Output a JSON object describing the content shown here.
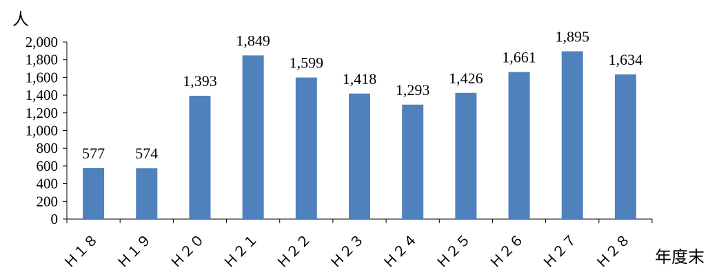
{
  "chart_data": {
    "type": "bar",
    "categories": [
      "Ｈ１８",
      "Ｈ１９",
      "Ｈ２０",
      "Ｈ２１",
      "Ｈ２２",
      "Ｈ２３",
      "Ｈ２４",
      "Ｈ２５",
      "Ｈ２６",
      "Ｈ２７",
      "Ｈ２８"
    ],
    "values": [
      577,
      574,
      1393,
      1849,
      1599,
      1418,
      1293,
      1426,
      1661,
      1895,
      1634
    ],
    "value_labels": [
      "577",
      "574",
      "1,393",
      "1,849",
      "1,599",
      "1,418",
      "1,293",
      "1,426",
      "1,661",
      "1,895",
      "1,634"
    ],
    "ylabel": "人",
    "xlabel": "年度末",
    "ylim": [
      0,
      2000
    ],
    "yticks": [
      0,
      200,
      400,
      600,
      800,
      1000,
      1200,
      1400,
      1600,
      1800,
      2000
    ],
    "ytick_labels": [
      "0",
      "200",
      "400",
      "600",
      "800",
      "1,000",
      "1,200",
      "1,400",
      "1,600",
      "1,800",
      "2,000"
    ],
    "grid": false,
    "bar_color": "#4f81bd"
  }
}
